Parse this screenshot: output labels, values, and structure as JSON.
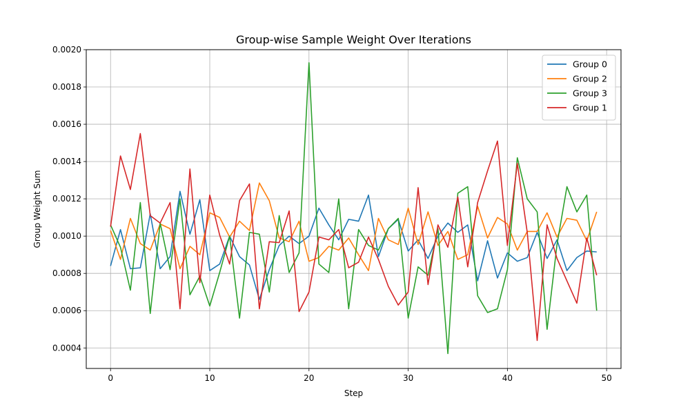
{
  "chart_data": {
    "type": "line",
    "title": "Group-wise Sample Weight Over Iterations",
    "xlabel": "Step",
    "ylabel": "Group Weight Sum",
    "xlim": [
      -2.45,
      51.45
    ],
    "ylim": [
      0.00029,
      0.002
    ],
    "xticks": [
      0,
      10,
      20,
      30,
      40,
      50
    ],
    "yticks": [
      0.0004,
      0.0006,
      0.0008,
      0.001,
      0.0012,
      0.0014,
      0.0016,
      0.0018,
      0.002
    ],
    "ytick_labels": [
      "0.0004",
      "0.0006",
      "0.0008",
      "0.0010",
      "0.0012",
      "0.0014",
      "0.0016",
      "0.0018",
      "0.0020"
    ],
    "grid": true,
    "legend_position": "top-right",
    "x": [
      0,
      1,
      2,
      3,
      4,
      5,
      6,
      7,
      8,
      9,
      10,
      11,
      12,
      13,
      14,
      15,
      16,
      17,
      18,
      19,
      20,
      21,
      22,
      23,
      24,
      25,
      26,
      27,
      28,
      29,
      30,
      31,
      32,
      33,
      34,
      35,
      36,
      37,
      38,
      39,
      40,
      41,
      42,
      43,
      44,
      45,
      46,
      47,
      48,
      49
    ],
    "series": [
      {
        "name": "Group 0",
        "color": "#1f77b4",
        "values": [
          0.00084,
          0.001035,
          0.000825,
          0.00083,
          0.00112,
          0.000825,
          0.00089,
          0.00124,
          0.00101,
          0.001195,
          0.000815,
          0.00085,
          0.001,
          0.00089,
          0.000845,
          0.00066,
          0.00082,
          0.00095,
          0.001,
          0.00096,
          0.001,
          0.00115,
          0.00106,
          0.00098,
          0.00109,
          0.00108,
          0.00122,
          0.00089,
          0.00104,
          0.00109,
          0.00092,
          0.00098,
          0.00088,
          0.001,
          0.00107,
          0.00102,
          0.00106,
          0.00076,
          0.000975,
          0.000775,
          0.00091,
          0.000865,
          0.000885,
          0.00102,
          0.00088,
          0.00098,
          0.000815,
          0.000885,
          0.00092,
          0.000915
        ]
      },
      {
        "name": "Group 2",
        "color": "#ff7f0e",
        "values": [
          0.00103,
          0.000875,
          0.001095,
          0.00096,
          0.000925,
          0.001065,
          0.00104,
          0.000825,
          0.000945,
          0.0009,
          0.001125,
          0.0011,
          0.000995,
          0.00108,
          0.00103,
          0.001285,
          0.00119,
          0.00099,
          0.00097,
          0.00108,
          0.000865,
          0.000885,
          0.000945,
          0.000925,
          0.00099,
          0.0009,
          0.000815,
          0.001095,
          0.00098,
          0.000955,
          0.00115,
          0.000955,
          0.00113,
          0.00095,
          0.001025,
          0.000875,
          0.0009,
          0.00116,
          0.00099,
          0.0011,
          0.001065,
          0.000925,
          0.001025,
          0.001025,
          0.001125,
          0.000995,
          0.001095,
          0.001085,
          0.000975,
          0.00113
        ]
      },
      {
        "name": "Group 3",
        "color": "#2ca02c",
        "values": [
          0.00106,
          0.00094,
          0.00071,
          0.00118,
          0.000585,
          0.00107,
          0.00082,
          0.0012,
          0.000685,
          0.000785,
          0.000625,
          0.000805,
          0.001,
          0.00056,
          0.00102,
          0.00101,
          0.0007,
          0.00111,
          0.000805,
          0.00091,
          0.00193,
          0.00085,
          0.000805,
          0.0012,
          0.00061,
          0.001035,
          0.00095,
          0.000925,
          0.00104,
          0.001095,
          0.00056,
          0.000835,
          0.00079,
          0.00104,
          0.00037,
          0.00123,
          0.001265,
          0.00068,
          0.00059,
          0.00061,
          0.00082,
          0.00142,
          0.0012,
          0.00113,
          0.0005,
          0.000955,
          0.001265,
          0.00113,
          0.00122,
          0.0006
        ]
      },
      {
        "name": "Group 1",
        "color": "#d62728",
        "values": [
          0.00105,
          0.00143,
          0.00125,
          0.00155,
          0.00111,
          0.00107,
          0.00118,
          0.00061,
          0.00136,
          0.00075,
          0.00122,
          0.001005,
          0.00085,
          0.00119,
          0.00128,
          0.00061,
          0.00097,
          0.000965,
          0.001135,
          0.000595,
          0.0007,
          0.000995,
          0.00098,
          0.001035,
          0.00083,
          0.00086,
          0.000995,
          0.000875,
          0.00073,
          0.00063,
          0.0007,
          0.00126,
          0.00074,
          0.00106,
          0.00094,
          0.00121,
          0.000835,
          0.00118,
          0.00135,
          0.00151,
          0.00095,
          0.00139,
          0.00102,
          0.00044,
          0.00106,
          0.00088,
          0.00076,
          0.00064,
          0.00099,
          0.00079
        ]
      }
    ]
  }
}
